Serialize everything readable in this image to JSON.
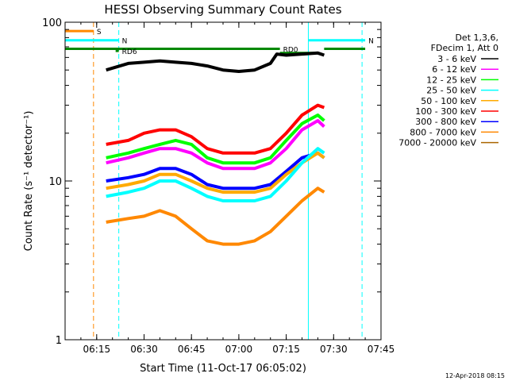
{
  "chart_data": {
    "type": "line",
    "title": "HESSI Observing Summary Count Rates",
    "xlabel": "Start Time (11-Oct-17 06:05:02)",
    "ylabel": "Count Rate (s⁻¹ detector⁻¹)",
    "y_scale": "log",
    "xlim": [
      "06:05",
      "07:45"
    ],
    "ylim": [
      1,
      100
    ],
    "x_ticks": [
      "06:15",
      "06:30",
      "06:45",
      "07:00",
      "07:15",
      "07:30",
      "07:45"
    ],
    "y_ticks": [
      "1",
      "10",
      "100"
    ],
    "legend_header": [
      "Det 1,3,6,",
      "FDecim 1, Att 0"
    ],
    "legend_position": "top-right",
    "timestamp": "12-Apr-2018 08:15",
    "grid": false,
    "series": [
      {
        "name": "3 - 6 keV",
        "color": "#000000",
        "x": [
          "06:18",
          "06:25",
          "06:30",
          "06:35",
          "06:40",
          "06:45",
          "06:50",
          "06:55",
          "07:00",
          "07:05",
          "07:10",
          "07:12",
          "07:15",
          "07:20",
          "07:25",
          "07:27"
        ],
        "values": [
          50,
          55,
          56,
          57,
          56,
          55,
          53,
          50,
          49,
          50,
          55,
          63,
          62,
          63,
          64,
          62
        ]
      },
      {
        "name": "6 - 12 keV",
        "color": "#ff00ff",
        "x": [
          "06:18",
          "06:25",
          "06:30",
          "06:35",
          "06:40",
          "06:45",
          "06:50",
          "06:55",
          "07:00",
          "07:05",
          "07:10",
          "07:15",
          "07:20",
          "07:25",
          "07:27"
        ],
        "values": [
          13,
          14,
          15,
          16,
          16,
          15,
          13,
          12,
          12,
          12,
          13,
          16,
          21,
          24,
          22
        ]
      },
      {
        "name": "12 - 25 keV",
        "color": "#00ff00",
        "x": [
          "06:18",
          "06:25",
          "06:30",
          "06:35",
          "06:40",
          "06:45",
          "06:50",
          "06:55",
          "07:00",
          "07:05",
          "07:10",
          "07:15",
          "07:20",
          "07:25",
          "07:27"
        ],
        "values": [
          14,
          15,
          16,
          17,
          18,
          17,
          14,
          13,
          13,
          13,
          14,
          18,
          23,
          26,
          24
        ]
      },
      {
        "name": "25 - 50 keV",
        "color": "#00ffff",
        "x": [
          "06:18",
          "06:25",
          "06:30",
          "06:35",
          "06:40",
          "06:45",
          "06:50",
          "06:55",
          "07:00",
          "07:05",
          "07:10",
          "07:15",
          "07:20",
          "07:25",
          "07:27"
        ],
        "values": [
          8,
          8.5,
          9,
          10,
          10,
          9,
          8,
          7.5,
          7.5,
          7.5,
          8,
          10,
          13,
          16,
          15
        ]
      },
      {
        "name": "50 - 100 keV",
        "color": "#ffaa00",
        "x": [
          "06:18",
          "06:25",
          "06:30",
          "06:35",
          "06:40",
          "06:45",
          "06:50",
          "06:55",
          "07:00",
          "07:05",
          "07:10",
          "07:15",
          "07:20",
          "07:25",
          "07:27"
        ],
        "values": [
          9,
          9.5,
          10,
          11,
          11,
          10,
          9,
          8.5,
          8.5,
          8.5,
          9,
          11,
          13,
          15,
          14
        ]
      },
      {
        "name": "100 - 300 keV",
        "color": "#ff0000",
        "x": [
          "06:18",
          "06:25",
          "06:30",
          "06:35",
          "06:40",
          "06:45",
          "06:50",
          "06:55",
          "07:00",
          "07:05",
          "07:10",
          "07:15",
          "07:20",
          "07:25",
          "07:27"
        ],
        "values": [
          17,
          18,
          20,
          21,
          21,
          19,
          16,
          15,
          15,
          15,
          16,
          20,
          26,
          30,
          29
        ]
      },
      {
        "name": "300 - 800 keV",
        "color": "#0000ff",
        "x": [
          "06:18",
          "06:25",
          "06:30",
          "06:35",
          "06:40",
          "06:45",
          "06:50",
          "06:55",
          "07:00",
          "07:05",
          "07:10",
          "07:15",
          "07:20",
          "07:25",
          "07:27"
        ],
        "values": [
          10,
          10.5,
          11,
          12,
          12,
          11,
          9.5,
          9,
          9,
          9,
          9.5,
          11.5,
          14,
          15,
          14
        ]
      },
      {
        "name": "800 - 7000 keV",
        "color": "#ff8800",
        "x": [
          "06:18",
          "06:25",
          "06:30",
          "06:35",
          "06:40",
          "06:45",
          "06:50",
          "06:55",
          "07:00",
          "07:05",
          "07:10",
          "07:15",
          "07:20",
          "07:25",
          "07:27"
        ],
        "values": [
          5.5,
          5.8,
          6,
          6.5,
          6,
          5,
          4.2,
          4,
          4,
          4.2,
          4.8,
          6,
          7.5,
          9,
          8.5
        ]
      },
      {
        "name": "7000 - 20000 keV",
        "color": "#aa6600",
        "x": [],
        "values": []
      }
    ],
    "annotations": [
      {
        "label": "S",
        "color": "#ff8800",
        "x_start": "06:05",
        "x_end": "06:14",
        "y": 88
      },
      {
        "label": "N",
        "color": "#00ffff",
        "x_start": "06:05",
        "x_end": "06:22",
        "y": 77
      },
      {
        "label": "N",
        "color": "#00ffff",
        "x_start": "07:22",
        "x_end": "07:40",
        "y": 77
      },
      {
        "label": "RD0",
        "color": "#008800",
        "x_start": "06:05",
        "x_end": "07:13",
        "y": 68
      },
      {
        "label": "RD6",
        "color": "#008800",
        "x_start": "06:21",
        "x_end": "06:22",
        "y": 66
      },
      {
        "label": "",
        "color": "#008800",
        "x_start": "07:13",
        "x_end": "07:25",
        "y": 64
      },
      {
        "label": "",
        "color": "#008800",
        "x_start": "07:27",
        "x_end": "07:40",
        "y": 68
      }
    ],
    "vlines": [
      {
        "x": "06:14",
        "color": "#ff8800",
        "dashed": true
      },
      {
        "x": "06:22",
        "color": "#00ffff",
        "dashed": true
      },
      {
        "x": "07:22",
        "color": "#00ffff",
        "dashed": false
      },
      {
        "x": "07:39",
        "color": "#00ffff",
        "dashed": true
      }
    ]
  }
}
